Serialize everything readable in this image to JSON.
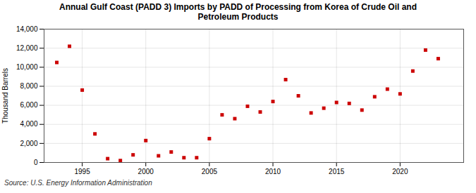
{
  "chart_data": {
    "type": "scatter",
    "title": "Annual Gulf Coast (PADD 3) Imports by PADD of Processing from Korea of Crude Oil and\nPetroleum Products",
    "ylabel": "Thousand Barrels",
    "caption": "Source: U.S. Energy Information Administration",
    "color": "#cc0000",
    "marker": "square",
    "x": [
      1993,
      1994,
      1995,
      1996,
      1997,
      1998,
      1999,
      2000,
      2001,
      2002,
      2003,
      2004,
      2005,
      2006,
      2007,
      2008,
      2009,
      2010,
      2011,
      2012,
      2013,
      2014,
      2015,
      2016,
      2017,
      2018,
      2019,
      2020,
      2021,
      2022,
      2023
    ],
    "values": [
      10500,
      12200,
      7600,
      3000,
      400,
      200,
      800,
      2300,
      700,
      1100,
      500,
      500,
      2500,
      5000,
      4600,
      5900,
      5300,
      6400,
      8700,
      7000,
      5200,
      5700,
      6300,
      6200,
      5500,
      6900,
      7700,
      7200,
      9600,
      11800,
      10900
    ],
    "xlim": [
      1992,
      2025
    ],
    "xticks": [
      1995,
      2000,
      2005,
      2010,
      2015,
      2020
    ],
    "ylim": [
      0,
      14000
    ],
    "yticks": [
      0,
      {
        "value": 2000,
        "label": "2,000"
      },
      {
        "value": 4000,
        "label": "4,000"
      },
      {
        "value": 6000,
        "label": "6,000"
      },
      {
        "value": 8000,
        "label": "8,000"
      },
      {
        "value": 10000,
        "label": "10,000"
      },
      {
        "value": 12000,
        "label": "12,000"
      },
      {
        "value": 14000,
        "label": "14,000"
      }
    ],
    "grid": true
  }
}
